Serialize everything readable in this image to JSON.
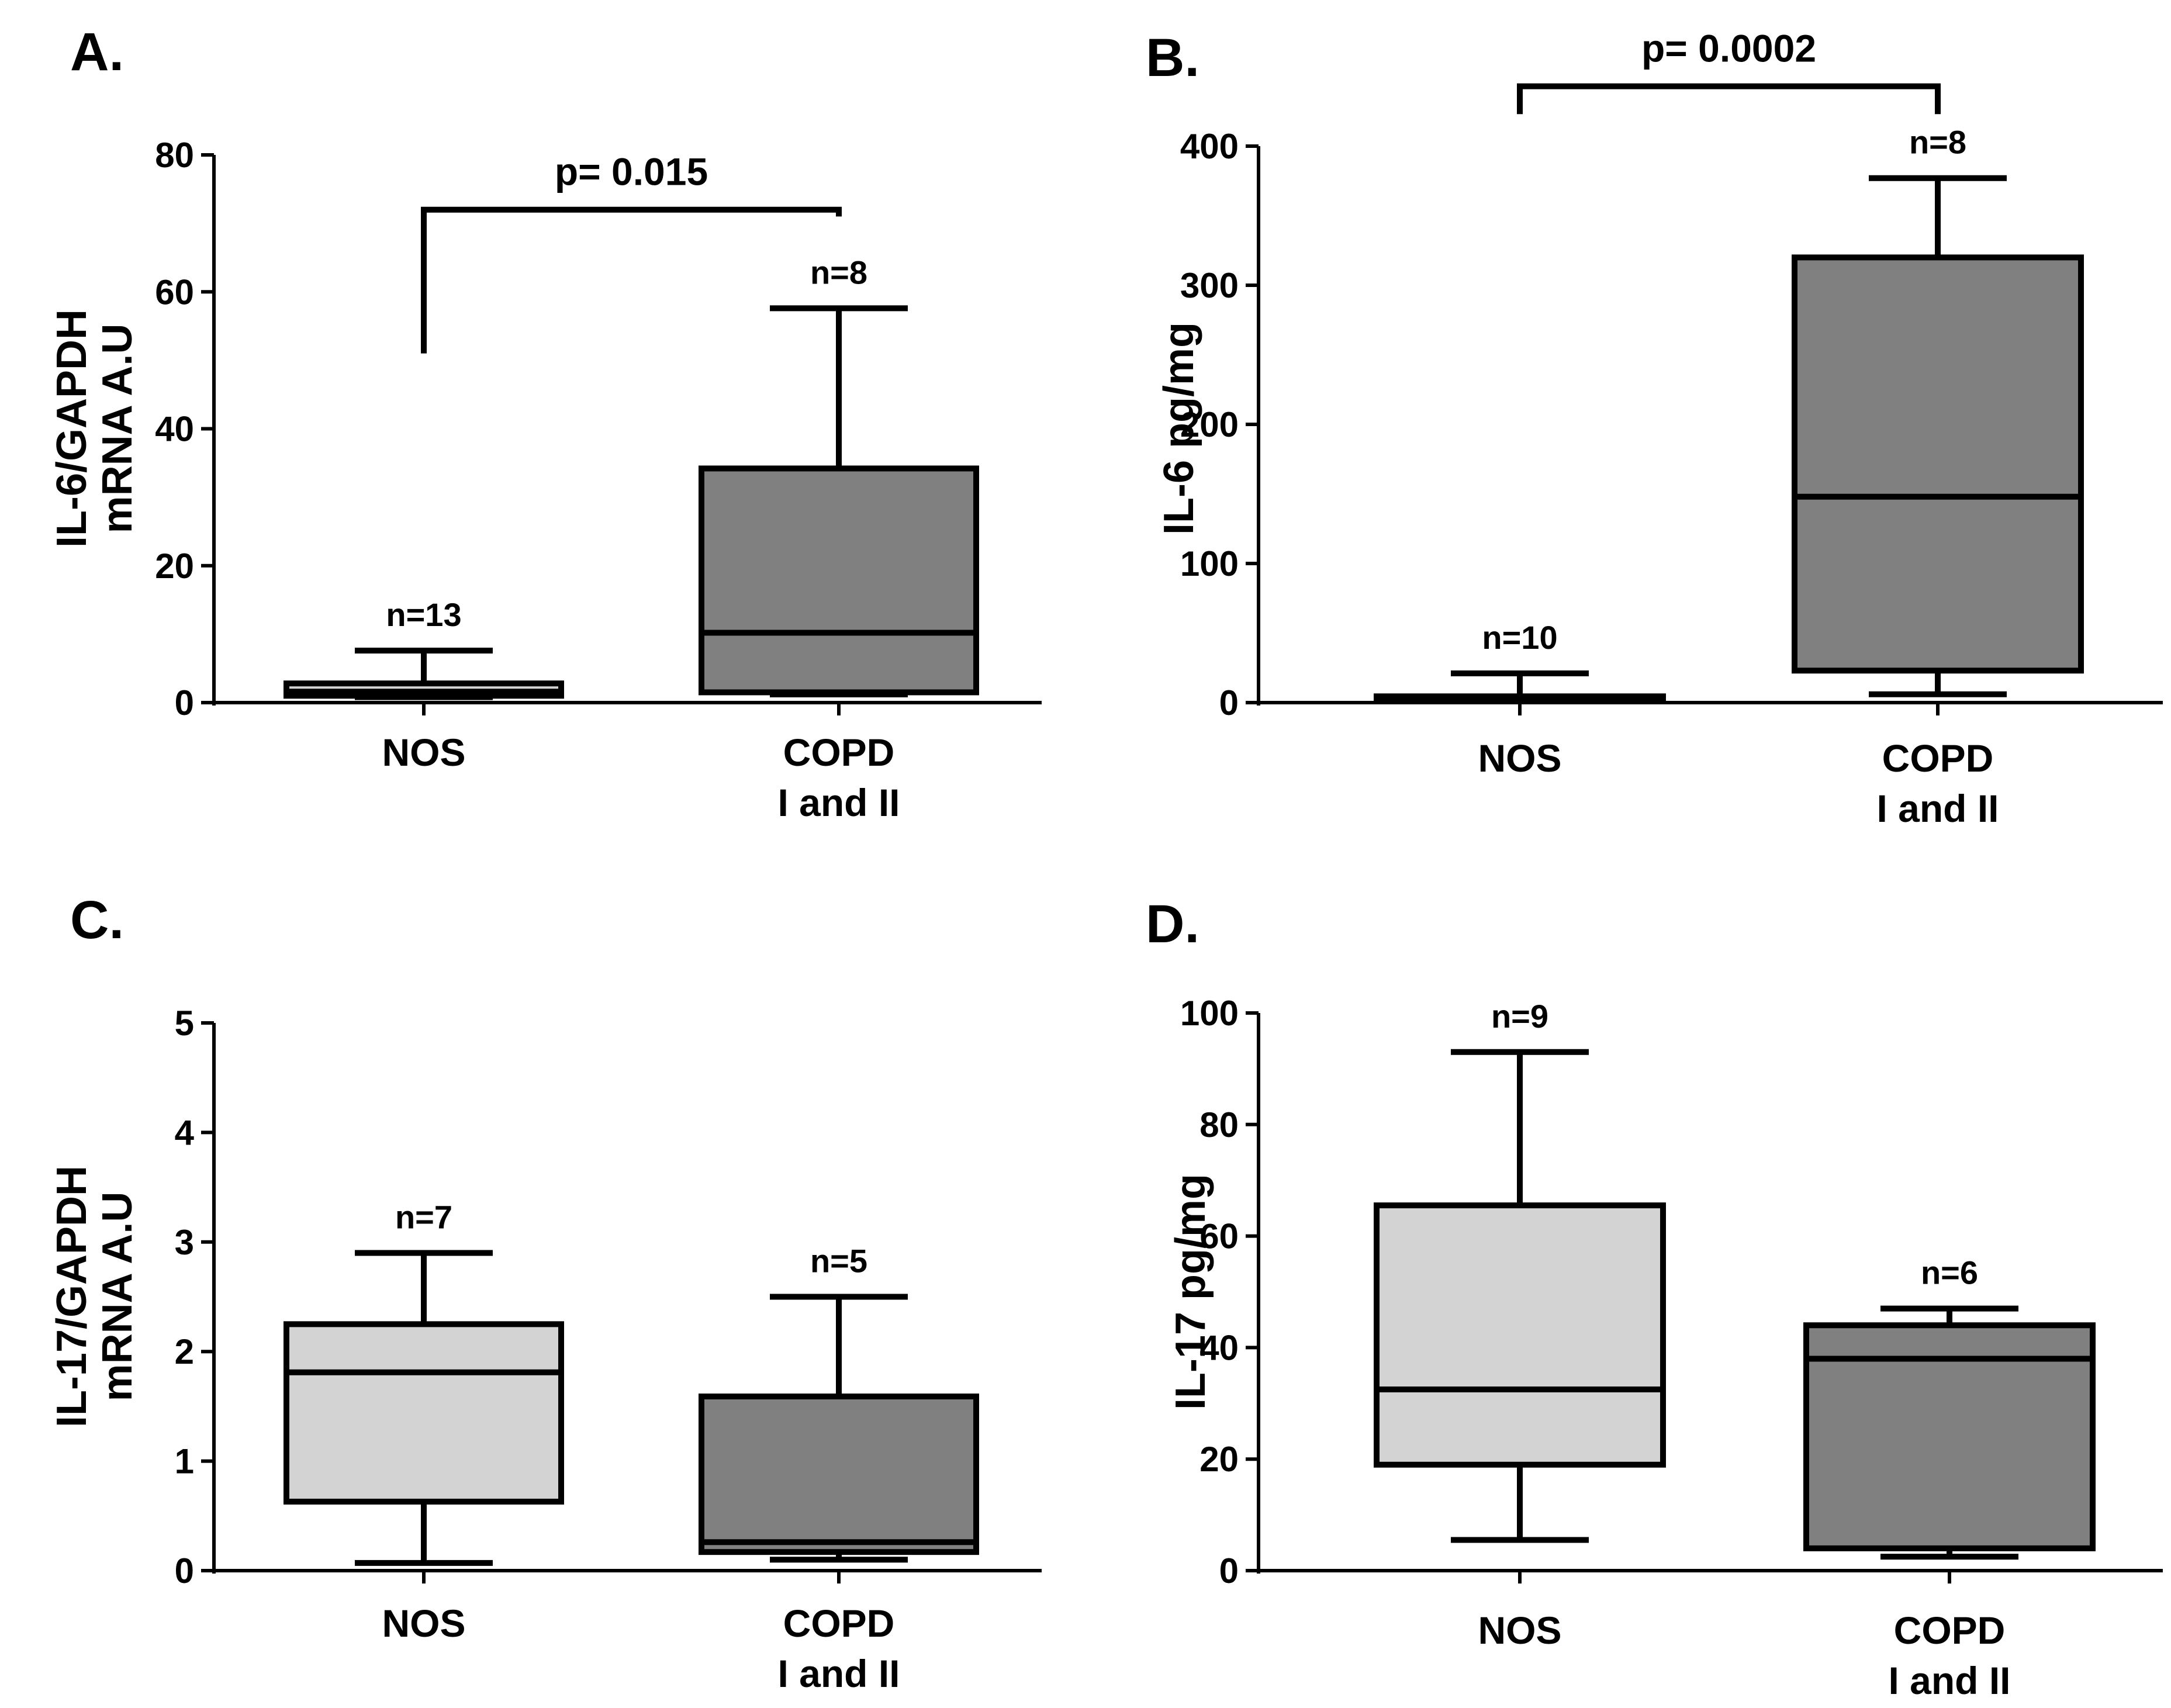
{
  "chart_data": [
    {
      "type": "box",
      "panel": "A.",
      "ylabel": [
        "IL-6/GAPDH",
        "mRNA A.U"
      ],
      "ylim": [
        0,
        80
      ],
      "yticks": [
        0,
        20,
        40,
        60,
        80
      ],
      "categories": [
        [
          "NOS"
        ],
        [
          "COPD",
          "I and II"
        ]
      ],
      "boxes": [
        {
          "min": 0.8,
          "q1": 1.0,
          "median": 1.6,
          "q3": 2.8,
          "max": 7.6,
          "n": "n=13",
          "color": "#d3d3d3"
        },
        {
          "min": 1.2,
          "q1": 1.5,
          "median": 10.2,
          "q3": 34.2,
          "max": 57.6,
          "n": "n=8",
          "color": "#808080"
        }
      ],
      "significance": {
        "label": "p= 0.015",
        "from": 0,
        "to": 1,
        "y": 72,
        "left_end": 51,
        "right_end": 71
      }
    },
    {
      "type": "box",
      "panel": "B.",
      "ylabel": [
        "IL-6 pg/mg"
      ],
      "ylim": [
        0,
        400
      ],
      "yticks": [
        0,
        100,
        200,
        300,
        400
      ],
      "categories": [
        [
          "NOS"
        ],
        [
          "COPD",
          "I and II"
        ]
      ],
      "boxes": [
        {
          "min": 2,
          "q1": 2.5,
          "median": 3,
          "q3": 4.5,
          "max": 21,
          "n": "n=10",
          "color": "#d3d3d3"
        },
        {
          "min": 6,
          "q1": 23,
          "median": 148,
          "q3": 320,
          "max": 377,
          "n": "n=8",
          "color": "#808080"
        }
      ],
      "significance": {
        "label": "p= 0.0002",
        "from": 0,
        "to": 1,
        "y": 443,
        "left_end": 423,
        "right_end": 423
      }
    },
    {
      "type": "box",
      "panel": "C.",
      "ylabel": [
        "IL-17/GAPDH",
        "mRNA A.U"
      ],
      "ylim": [
        0,
        5
      ],
      "yticks": [
        0,
        1,
        2,
        3,
        4,
        5
      ],
      "categories": [
        [
          "NOS"
        ],
        [
          "COPD",
          "I and II"
        ]
      ],
      "boxes": [
        {
          "min": 0.07,
          "q1": 0.63,
          "median": 1.81,
          "q3": 2.25,
          "max": 2.9,
          "n": "n=7",
          "color": "#d3d3d3"
        },
        {
          "min": 0.1,
          "q1": 0.17,
          "median": 0.26,
          "q3": 1.59,
          "max": 2.5,
          "n": "n=5",
          "color": "#808080"
        }
      ]
    },
    {
      "type": "box",
      "panel": "D.",
      "ylabel": [
        "IL-17 pg/mg"
      ],
      "ylim": [
        0,
        100
      ],
      "yticks": [
        0,
        20,
        40,
        60,
        80,
        100
      ],
      "categories": [
        [
          "NOS"
        ],
        [
          "COPD",
          "I and II"
        ]
      ],
      "boxes": [
        {
          "min": 5.5,
          "q1": 19,
          "median": 32.5,
          "q3": 65.5,
          "max": 93,
          "n": "n=9",
          "color": "#d3d3d3"
        },
        {
          "min": 2.5,
          "q1": 4,
          "median": 38,
          "q3": 44,
          "max": 47,
          "n": "n=6",
          "color": "#808080"
        }
      ]
    }
  ]
}
